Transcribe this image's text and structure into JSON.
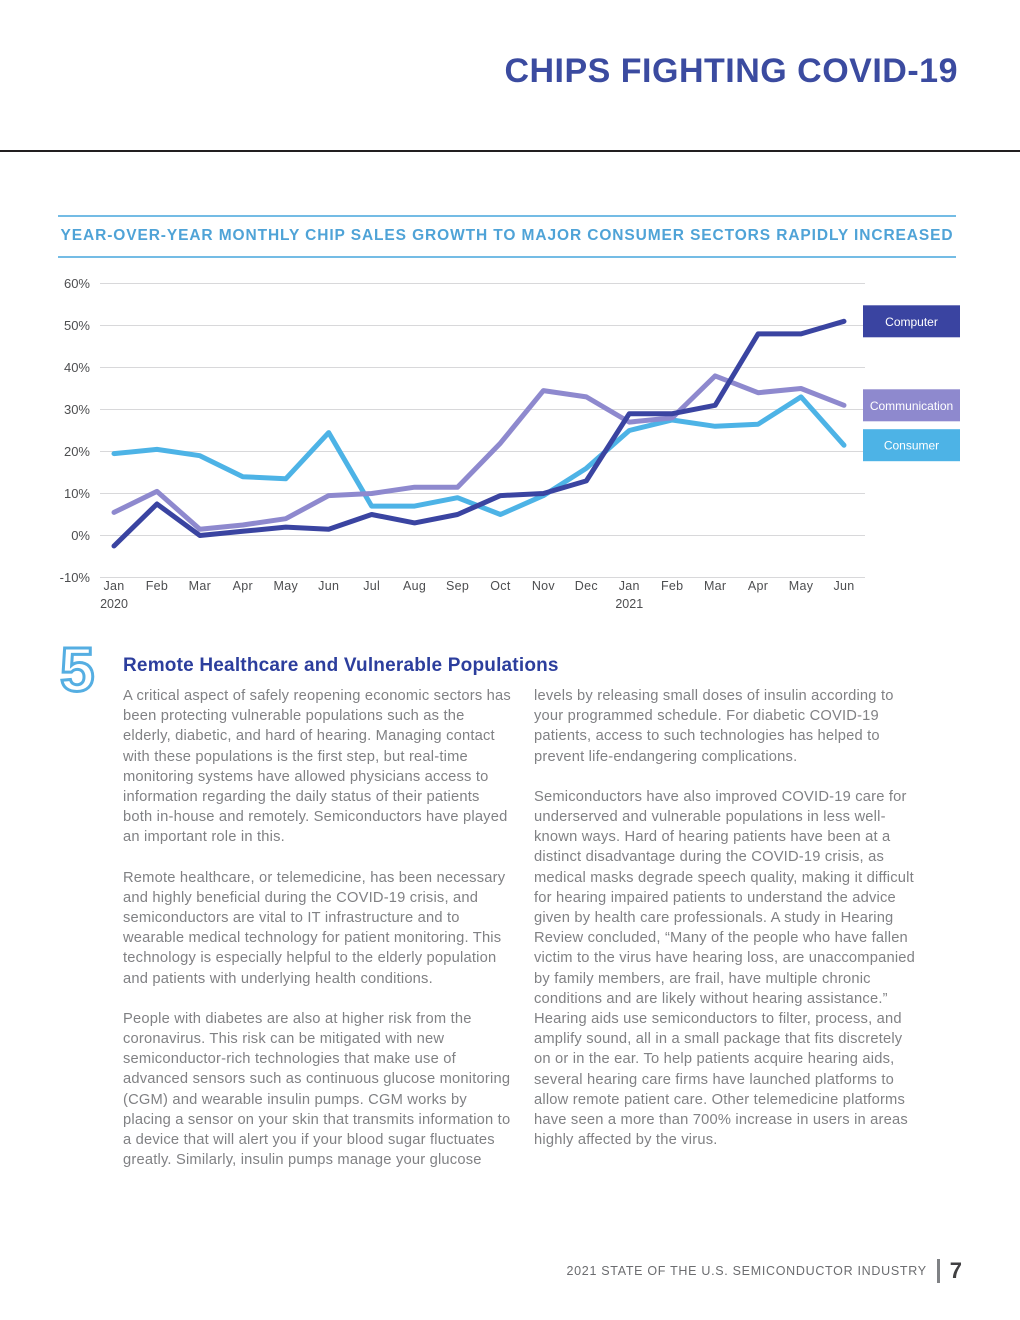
{
  "header": {
    "title": "CHIPS FIGHTING COVID-19"
  },
  "chart": {
    "title": "YEAR-OVER-YEAR MONTHLY CHIP SALES GROWTH TO MAJOR CONSUMER SECTORS RAPIDLY INCREASED"
  },
  "chart_data": {
    "type": "line",
    "title": "YEAR-OVER-YEAR MONTHLY CHIP SALES GROWTH TO MAJOR CONSUMER SECTORS RAPIDLY INCREASED",
    "x": [
      "Jan",
      "Feb",
      "Mar",
      "Apr",
      "May",
      "Jun",
      "Jul",
      "Aug",
      "Sep",
      "Oct",
      "Nov",
      "Dec",
      "Jan",
      "Feb",
      "Mar",
      "Apr",
      "May",
      "Jun"
    ],
    "year_labels": [
      {
        "index": 0,
        "label": "2020"
      },
      {
        "index": 12,
        "label": "2021"
      }
    ],
    "unit": "%",
    "ylim": [
      -10,
      60
    ],
    "ytick_step": 10,
    "grid": true,
    "legend_position": "right",
    "series": [
      {
        "name": "Computer",
        "color": "#3a44a1",
        "values": [
          -2.5,
          7.5,
          0,
          1,
          2,
          1.5,
          5,
          3,
          5,
          9.5,
          10,
          13,
          29,
          29,
          31,
          48,
          48,
          51
        ]
      },
      {
        "name": "Communication",
        "color": "#8e89ce",
        "values": [
          5.5,
          10.5,
          1.5,
          2.5,
          4,
          9.5,
          10,
          11.5,
          11.5,
          22,
          34.5,
          33,
          27,
          28,
          38,
          34,
          35,
          31
        ]
      },
      {
        "name": "Consumer",
        "color": "#4db3e6",
        "values": [
          19.5,
          20.5,
          19,
          14,
          13.5,
          24.5,
          7,
          7,
          9,
          5,
          9.5,
          16,
          25,
          27.5,
          26,
          26.5,
          33,
          21.5
        ]
      }
    ]
  },
  "section": {
    "number": "5",
    "heading": "Remote Healthcare and Vulnerable Populations",
    "col1": [
      "A critical aspect of safely reopening economic sectors has been protecting vulnerable populations such as the elderly, diabetic, and hard of hearing. Managing contact with these populations is the first step, but real-time monitoring systems have allowed physicians access to information regarding the daily status of their patients both in-house and remotely. Semiconductors have played an important role in this.",
      "Remote healthcare, or telemedicine, has been necessary and highly beneficial during the COVID-19 crisis, and semiconductors are vital to IT infrastructure and to wearable medical technology for patient monitoring. This technology is especially helpful to the elderly population and patients with underlying health conditions.",
      "People with diabetes are also at higher risk from the coronavirus. This risk can be mitigated with new semiconductor-rich technologies that make use of advanced sensors such as continuous glucose monitoring (CGM) and wearable insulin pumps. CGM works by placing a sensor on your skin that transmits information to a device that will alert you if your blood sugar fluctuates greatly. Similarly, insulin pumps manage your glucose"
    ],
    "col2": [
      "levels by releasing small doses of insulin according to your programmed schedule. For diabetic COVID-19 patients, access to such technologies has helped to prevent life-endangering complications.",
      "Semiconductors have also improved COVID-19 care for underserved and vulnerable populations in less well-known ways. Hard of hearing patients have been at a distinct disadvantage during the COVID-19 crisis, as medical masks degrade speech quality, making it difficult for hearing impaired patients to understand the advice given by health care professionals. A study in Hearing Review concluded, “Many of the people who have fallen victim to the virus have hearing loss, are unaccompanied by family members, are frail, have multiple chronic conditions and are likely without hearing assistance.” Hearing aids use semiconductors to filter, process, and amplify sound, all in a small package that fits discretely on or in the ear. To help patients acquire hearing aids, several hearing care firms have launched platforms to allow remote patient care. Other telemedicine platforms have seen a more than 700% increase in users in areas highly affected by the virus."
    ]
  },
  "footer": {
    "text": "2021 STATE OF THE U.S. SEMICONDUCTOR INDUSTRY",
    "page_number": "7"
  }
}
